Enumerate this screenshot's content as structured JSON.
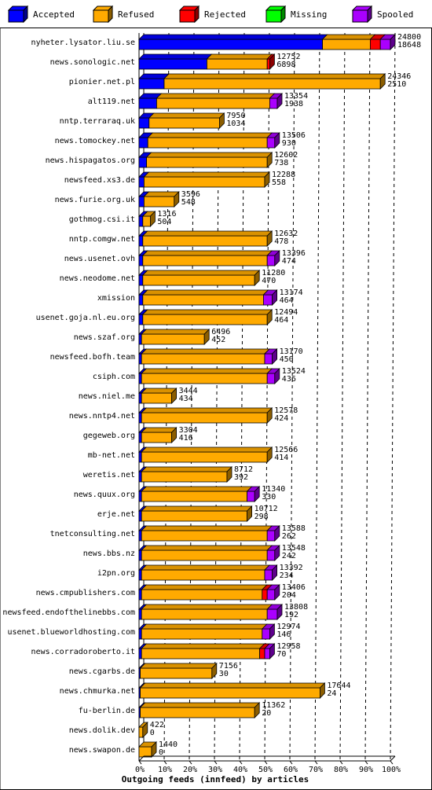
{
  "legend": [
    {
      "name": "Accepted",
      "color": "#0000ff"
    },
    {
      "name": "Refused",
      "color": "#ffaa00"
    },
    {
      "name": "Rejected",
      "color": "#ff0000"
    },
    {
      "name": "Missing",
      "color": "#00ff00"
    },
    {
      "name": "Spooled",
      "color": "#aa00ff"
    }
  ],
  "chart_data": {
    "type": "bar",
    "orientation": "horizontal",
    "stacked": true,
    "title": "Outgoing feeds (innfeed) by articles",
    "xlabel": "Outgoing feeds (innfeed) by articles",
    "x_ticks": [
      "0%",
      "10%",
      "20%",
      "30%",
      "40%",
      "50%",
      "60%",
      "70%",
      "80%",
      "90%",
      "100%"
    ],
    "xlim": [
      0,
      100
    ],
    "grid": true,
    "legend_position": "top",
    "series_colors": {
      "Accepted": "#0000ff",
      "Refused": "#ffaa00",
      "Rejected": "#ff0000",
      "Missing": "#00ff00",
      "Spooled": "#aa00ff"
    },
    "categories": [
      {
        "host": "nyheter.lysator.liu.se",
        "total": "24800",
        "accepted": "18648",
        "pct": {
          "Accepted": 73,
          "Refused": 19,
          "Rejected": 4,
          "Missing": 0,
          "Spooled": 4
        }
      },
      {
        "host": "news.sonologic.net",
        "total": "12752",
        "accepted": "6898",
        "pct": {
          "Accepted": 27,
          "Refused": 24,
          "Rejected": 1,
          "Missing": 0,
          "Spooled": 0
        }
      },
      {
        "host": "pionier.net.pl",
        "total": "24346",
        "accepted": "2510",
        "pct": {
          "Accepted": 10,
          "Refused": 86,
          "Rejected": 0,
          "Missing": 0,
          "Spooled": 0
        }
      },
      {
        "host": "alt119.net",
        "total": "13354",
        "accepted": "1938",
        "pct": {
          "Accepted": 7,
          "Refused": 45,
          "Rejected": 0,
          "Missing": 0,
          "Spooled": 3
        }
      },
      {
        "host": "nntp.terraraq.uk",
        "total": "7950",
        "accepted": "1034",
        "pct": {
          "Accepted": 4,
          "Refused": 28,
          "Rejected": 0,
          "Missing": 0,
          "Spooled": 0
        }
      },
      {
        "host": "news.tomockey.net",
        "total": "13506",
        "accepted": "930",
        "pct": {
          "Accepted": 3.5,
          "Refused": 47.5,
          "Rejected": 0,
          "Missing": 0,
          "Spooled": 3
        }
      },
      {
        "host": "news.hispagatos.org",
        "total": "12602",
        "accepted": "738",
        "pct": {
          "Accepted": 3,
          "Refused": 48,
          "Rejected": 0,
          "Missing": 0,
          "Spooled": 0
        }
      },
      {
        "host": "newsfeed.xs3.de",
        "total": "12288",
        "accepted": "558",
        "pct": {
          "Accepted": 2,
          "Refused": 48,
          "Rejected": 0,
          "Missing": 0,
          "Spooled": 0
        }
      },
      {
        "host": "news.furie.org.uk",
        "total": "3596",
        "accepted": "548",
        "pct": {
          "Accepted": 2,
          "Refused": 12,
          "Rejected": 0,
          "Missing": 0,
          "Spooled": 0
        }
      },
      {
        "host": "gothmog.csi.it",
        "total": "1316",
        "accepted": "504",
        "pct": {
          "Accepted": 1.5,
          "Refused": 3,
          "Rejected": 0,
          "Missing": 0,
          "Spooled": 0
        }
      },
      {
        "host": "nntp.comgw.net",
        "total": "12632",
        "accepted": "478",
        "pct": {
          "Accepted": 1.5,
          "Refused": 49.5,
          "Rejected": 0,
          "Missing": 0,
          "Spooled": 0
        }
      },
      {
        "host": "news.usenet.ovh",
        "total": "13396",
        "accepted": "474",
        "pct": {
          "Accepted": 1.5,
          "Refused": 49.5,
          "Rejected": 0,
          "Missing": 0,
          "Spooled": 3
        }
      },
      {
        "host": "news.neodome.net",
        "total": "11280",
        "accepted": "470",
        "pct": {
          "Accepted": 1.5,
          "Refused": 44.5,
          "Rejected": 0,
          "Missing": 0,
          "Spooled": 0
        }
      },
      {
        "host": "xmission",
        "total": "13174",
        "accepted": "464",
        "pct": {
          "Accepted": 1.5,
          "Refused": 48,
          "Rejected": 0,
          "Missing": 0,
          "Spooled": 3.5
        }
      },
      {
        "host": "usenet.goja.nl.eu.org",
        "total": "12494",
        "accepted": "464",
        "pct": {
          "Accepted": 1.5,
          "Refused": 49.5,
          "Rejected": 0,
          "Missing": 0,
          "Spooled": 0
        }
      },
      {
        "host": "news.szaf.org",
        "total": "6496",
        "accepted": "452",
        "pct": {
          "Accepted": 1,
          "Refused": 25,
          "Rejected": 0,
          "Missing": 0,
          "Spooled": 0
        }
      },
      {
        "host": "newsfeed.bofh.team",
        "total": "13170",
        "accepted": "450",
        "pct": {
          "Accepted": 1,
          "Refused": 49,
          "Rejected": 0,
          "Missing": 0,
          "Spooled": 3
        }
      },
      {
        "host": "csiph.com",
        "total": "13524",
        "accepted": "436",
        "pct": {
          "Accepted": 1,
          "Refused": 50,
          "Rejected": 0,
          "Missing": 0,
          "Spooled": 3
        }
      },
      {
        "host": "news.niel.me",
        "total": "3444",
        "accepted": "434",
        "pct": {
          "Accepted": 1,
          "Refused": 12,
          "Rejected": 0,
          "Missing": 0,
          "Spooled": 0
        }
      },
      {
        "host": "news.nntp4.net",
        "total": "12578",
        "accepted": "424",
        "pct": {
          "Accepted": 1,
          "Refused": 50,
          "Rejected": 0,
          "Missing": 0,
          "Spooled": 0
        }
      },
      {
        "host": "gegeweb.org",
        "total": "3304",
        "accepted": "416",
        "pct": {
          "Accepted": 1,
          "Refused": 12,
          "Rejected": 0,
          "Missing": 0,
          "Spooled": 0
        }
      },
      {
        "host": "mb-net.net",
        "total": "12566",
        "accepted": "414",
        "pct": {
          "Accepted": 1,
          "Refused": 50,
          "Rejected": 0,
          "Missing": 0,
          "Spooled": 0
        }
      },
      {
        "host": "weretis.net",
        "total": "8712",
        "accepted": "392",
        "pct": {
          "Accepted": 1,
          "Refused": 34,
          "Rejected": 0,
          "Missing": 0,
          "Spooled": 0
        }
      },
      {
        "host": "news.quux.org",
        "total": "11340",
        "accepted": "330",
        "pct": {
          "Accepted": 1,
          "Refused": 42,
          "Rejected": 0,
          "Missing": 0,
          "Spooled": 3
        }
      },
      {
        "host": "erje.net",
        "total": "10712",
        "accepted": "298",
        "pct": {
          "Accepted": 1,
          "Refused": 42,
          "Rejected": 0,
          "Missing": 0,
          "Spooled": 0
        }
      },
      {
        "host": "tnetconsulting.net",
        "total": "13588",
        "accepted": "262",
        "pct": {
          "Accepted": 1,
          "Refused": 50,
          "Rejected": 0,
          "Missing": 0,
          "Spooled": 3
        }
      },
      {
        "host": "news.bbs.nz",
        "total": "13548",
        "accepted": "242",
        "pct": {
          "Accepted": 1,
          "Refused": 50,
          "Rejected": 0,
          "Missing": 0,
          "Spooled": 3
        }
      },
      {
        "host": "i2pn.org",
        "total": "13392",
        "accepted": "234",
        "pct": {
          "Accepted": 1,
          "Refused": 49,
          "Rejected": 0,
          "Missing": 0,
          "Spooled": 3
        }
      },
      {
        "host": "news.cmpublishers.com",
        "total": "13406",
        "accepted": "204",
        "pct": {
          "Accepted": 1,
          "Refused": 48,
          "Rejected": 2,
          "Missing": 0,
          "Spooled": 3
        }
      },
      {
        "host": "newsfeed.endofthelinebbs.com",
        "total": "13808",
        "accepted": "192",
        "pct": {
          "Accepted": 1,
          "Refused": 50,
          "Rejected": 0,
          "Missing": 0,
          "Spooled": 4
        }
      },
      {
        "host": "usenet.blueworldhosting.com",
        "total": "12974",
        "accepted": "146",
        "pct": {
          "Accepted": 1,
          "Refused": 48,
          "Rejected": 0,
          "Missing": 0,
          "Spooled": 3
        }
      },
      {
        "host": "news.corradoroberto.it",
        "total": "12958",
        "accepted": "70",
        "pct": {
          "Accepted": 1,
          "Refused": 47,
          "Rejected": 2,
          "Missing": 0,
          "Spooled": 2
        }
      },
      {
        "host": "news.cgarbs.de",
        "total": "7156",
        "accepted": "30",
        "pct": {
          "Accepted": 0.5,
          "Refused": 28.5,
          "Rejected": 0,
          "Missing": 0,
          "Spooled": 0
        }
      },
      {
        "host": "news.chmurka.net",
        "total": "17644",
        "accepted": "24",
        "pct": {
          "Accepted": 0.5,
          "Refused": 71.5,
          "Rejected": 0,
          "Missing": 0,
          "Spooled": 0
        }
      },
      {
        "host": "fu-berlin.de",
        "total": "11362",
        "accepted": "20",
        "pct": {
          "Accepted": 0.5,
          "Refused": 45.5,
          "Rejected": 0,
          "Missing": 0,
          "Spooled": 0
        }
      },
      {
        "host": "news.dolik.dev",
        "total": "422",
        "accepted": "0",
        "pct": {
          "Accepted": 0,
          "Refused": 1.5,
          "Rejected": 0,
          "Missing": 0,
          "Spooled": 0
        }
      },
      {
        "host": "news.swapon.de",
        "total": "1440",
        "accepted": "0",
        "pct": {
          "Accepted": 0,
          "Refused": 5,
          "Rejected": 0,
          "Missing": 0,
          "Spooled": 0
        }
      }
    ]
  }
}
